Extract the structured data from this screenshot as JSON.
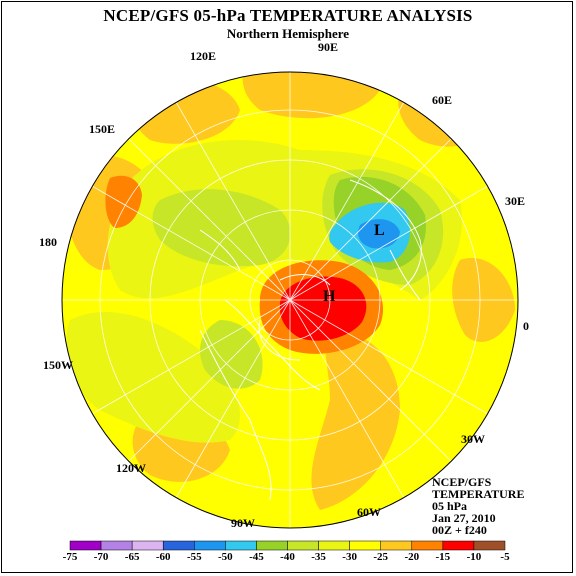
{
  "header": {
    "title": "NCEP/GFS 05-hPa TEMPERATURE ANALYSIS",
    "subtitle": "Northern Hemisphere"
  },
  "longitudes": [
    "90E",
    "60E",
    "30E",
    "0",
    "30W",
    "60W",
    "90W",
    "120W",
    "150W",
    "180",
    "150E",
    "120E"
  ],
  "centers": {
    "low": "L",
    "high": "H"
  },
  "info": {
    "line1": "NCEP/GFS",
    "line2": "TEMPERATURE",
    "line3": "05 hPa",
    "line4": "Jan 27, 2010",
    "line5": "00Z + f240"
  },
  "colorbar": {
    "ticks": [
      "-75",
      "-70",
      "-65",
      "-60",
      "-55",
      "-50",
      "-45",
      "-40",
      "-35",
      "-30",
      "-25",
      "-20",
      "-15",
      "-10",
      "-5"
    ],
    "colors": [
      "#a000c8",
      "#b482e6",
      "#dcb4f0",
      "#2864dc",
      "#1e96f0",
      "#32c8f0",
      "#96d228",
      "#c8e628",
      "#ebf514",
      "#ffff00",
      "#ffc81e",
      "#ff8200",
      "#ff0000",
      "#a05028",
      "#969696"
    ]
  }
}
